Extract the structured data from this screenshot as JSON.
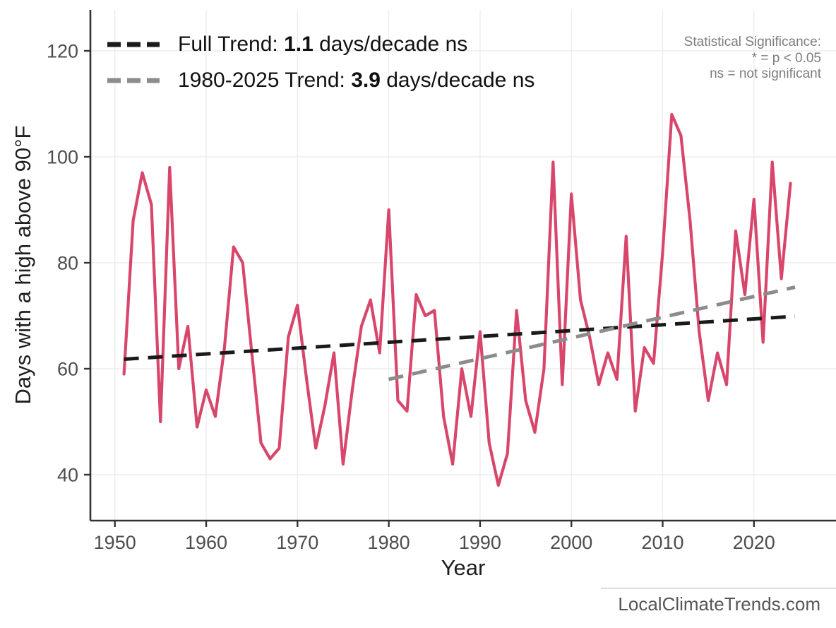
{
  "chart_data": {
    "type": "line",
    "title": "",
    "xlabel": "Year",
    "ylabel": "Days with a high above 90°F",
    "x_ticks": [
      1950,
      1960,
      1970,
      1980,
      1990,
      2000,
      2010,
      2020
    ],
    "y_ticks": [
      40,
      60,
      80,
      100,
      120
    ],
    "xlim": [
      1947,
      2029
    ],
    "ylim": [
      31,
      128
    ],
    "grid": true,
    "legend_position": "top-left",
    "series": [
      {
        "name": "days-above-90F",
        "color": "#D8466C",
        "x": [
          1951,
          1952,
          1953,
          1954,
          1955,
          1956,
          1957,
          1958,
          1959,
          1960,
          1961,
          1962,
          1963,
          1964,
          1965,
          1966,
          1967,
          1968,
          1969,
          1970,
          1971,
          1972,
          1973,
          1974,
          1975,
          1976,
          1977,
          1978,
          1979,
          1980,
          1981,
          1982,
          1983,
          1984,
          1985,
          1986,
          1987,
          1988,
          1989,
          1990,
          1991,
          1992,
          1993,
          1994,
          1995,
          1996,
          1997,
          1998,
          1999,
          2000,
          2001,
          2002,
          2003,
          2004,
          2005,
          2006,
          2007,
          2008,
          2009,
          2010,
          2011,
          2012,
          2013,
          2014,
          2015,
          2016,
          2017,
          2018,
          2019,
          2020,
          2021,
          2022,
          2023,
          2024
        ],
        "y": [
          59,
          88,
          97,
          91,
          50,
          98,
          60,
          68,
          49,
          56,
          51,
          64,
          83,
          80,
          63,
          46,
          43,
          45,
          66,
          72,
          58,
          45,
          53,
          63,
          42,
          56,
          68,
          73,
          63,
          90,
          54,
          52,
          74,
          70,
          71,
          51,
          42,
          60,
          51,
          67,
          46,
          38,
          44,
          71,
          54,
          48,
          60,
          99,
          57,
          93,
          73,
          66,
          57,
          63,
          58,
          85,
          52,
          64,
          61,
          82,
          108,
          104,
          88,
          67,
          54,
          63,
          57,
          86,
          74,
          92,
          65,
          99,
          77,
          95
        ]
      }
    ],
    "trends": [
      {
        "name": "full-trend",
        "label_prefix": "Full Trend: ",
        "label_value": "1.1",
        "label_suffix": " days/decade ns",
        "color": "#1a1a1a",
        "x1": 1951,
        "y1": 61.8,
        "x2": 2024.5,
        "y2": 69.9
      },
      {
        "name": "recent-trend",
        "label_prefix": "1980-2025 Trend: ",
        "label_value": "3.9",
        "label_suffix": " days/decade ns",
        "color": "#8c8c8c",
        "x1": 1980,
        "y1": 58.0,
        "x2": 2024.5,
        "y2": 75.4
      }
    ]
  },
  "note": {
    "lines": [
      "Statistical Significance:",
      "* = p < 0.05",
      "ns = not significant"
    ]
  },
  "watermark": {
    "text": "LocalClimateTrends.com"
  }
}
